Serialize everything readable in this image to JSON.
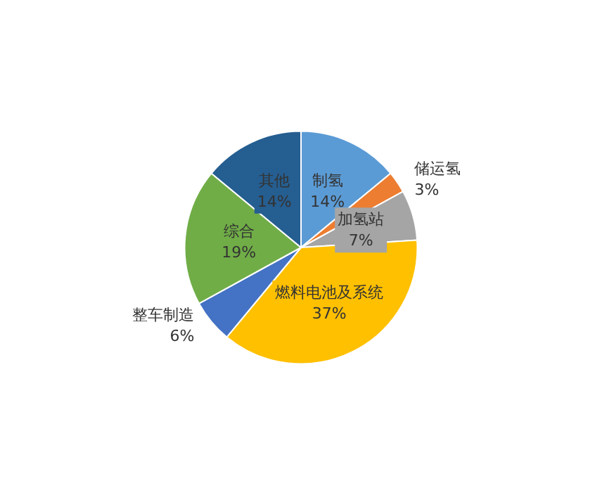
{
  "chart_data": {
    "type": "pie",
    "categories": [
      "制氢",
      "储运氢",
      "加氢站",
      "燃料电池及系统",
      "整车制造",
      "综合",
      "其他"
    ],
    "values": [
      14,
      3,
      7,
      37,
      6,
      19,
      14
    ],
    "value_labels": [
      "14%",
      "3%",
      "7%",
      "37%",
      "6%",
      "19%",
      "14%"
    ],
    "colors": [
      "#5b9bd5",
      "#ed7d31",
      "#a5a5a5",
      "#ffc000",
      "#4472c4",
      "#70ad47",
      "#255e91"
    ],
    "legend": false
  }
}
